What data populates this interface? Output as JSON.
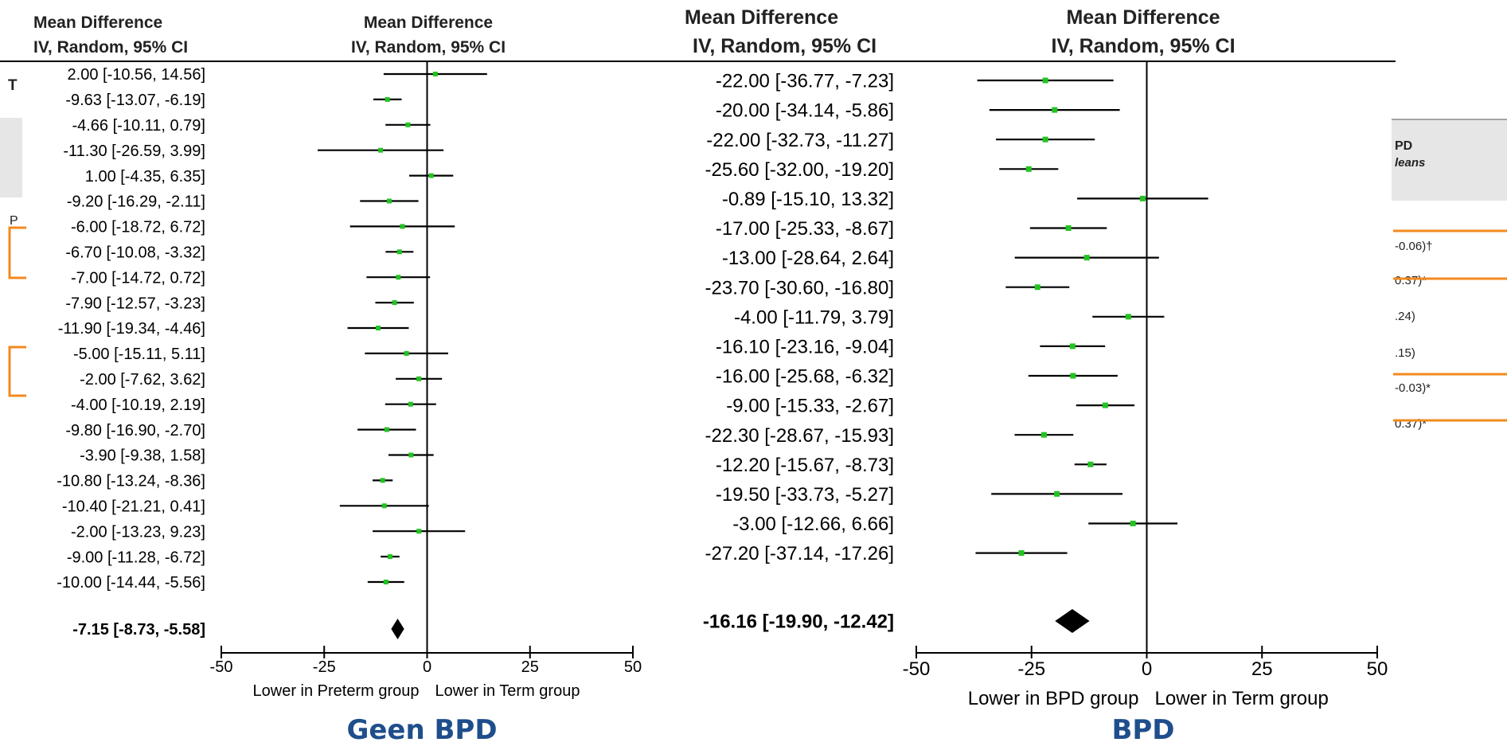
{
  "colors": {
    "estimate_marker": "#22c322",
    "panel_caption": "#1f4e8c",
    "highlight_bracket": "#f28a1f",
    "background_box": "#e6e6e6"
  },
  "background_fragments": {
    "left_letter_1": "T",
    "left_letter_2": "P",
    "right_header_1": "PD",
    "right_header_2": "leans",
    "right_rows": [
      "-0.06)†",
      "0.37)*",
      ".24)",
      ".15)",
      "-0.03)*",
      "0.37)*"
    ]
  },
  "chart_data": [
    {
      "type": "forest",
      "caption": "Geen BPD",
      "col_header_1": [
        "Mean Difference",
        "IV, Random, 95% CI"
      ],
      "col_header_2": [
        "Mean Difference",
        "IV, Random, 95% CI"
      ],
      "xlim": [
        -50,
        50
      ],
      "ticks": [
        -50,
        -25,
        0,
        25,
        50
      ],
      "tick_labels": [
        "-50",
        "-25",
        "0",
        "25",
        "50"
      ],
      "xlabel_left": "Lower in Preterm group",
      "xlabel_right": "Lower in Term group",
      "studies": [
        {
          "label": "2.00 [-10.56, 14.56]",
          "est": 2.0,
          "lo": -10.56,
          "hi": 14.56
        },
        {
          "label": "-9.63 [-13.07, -6.19]",
          "est": -9.63,
          "lo": -13.07,
          "hi": -6.19
        },
        {
          "label": "-4.66 [-10.11, 0.79]",
          "est": -4.66,
          "lo": -10.11,
          "hi": 0.79
        },
        {
          "label": "-11.30 [-26.59, 3.99]",
          "est": -11.3,
          "lo": -26.59,
          "hi": 3.99
        },
        {
          "label": "1.00 [-4.35, 6.35]",
          "est": 1.0,
          "lo": -4.35,
          "hi": 6.35
        },
        {
          "label": "-9.20 [-16.29, -2.11]",
          "est": -9.2,
          "lo": -16.29,
          "hi": -2.11
        },
        {
          "label": "-6.00 [-18.72, 6.72]",
          "est": -6.0,
          "lo": -18.72,
          "hi": 6.72
        },
        {
          "label": "-6.70 [-10.08, -3.32]",
          "est": -6.7,
          "lo": -10.08,
          "hi": -3.32
        },
        {
          "label": "-7.00 [-14.72, 0.72]",
          "est": -7.0,
          "lo": -14.72,
          "hi": 0.72
        },
        {
          "label": "-7.90 [-12.57, -3.23]",
          "est": -7.9,
          "lo": -12.57,
          "hi": -3.23
        },
        {
          "label": "-11.90 [-19.34, -4.46]",
          "est": -11.9,
          "lo": -19.34,
          "hi": -4.46
        },
        {
          "label": "-5.00 [-15.11, 5.11]",
          "est": -5.0,
          "lo": -15.11,
          "hi": 5.11
        },
        {
          "label": "-2.00 [-7.62, 3.62]",
          "est": -2.0,
          "lo": -7.62,
          "hi": 3.62
        },
        {
          "label": "-4.00 [-10.19, 2.19]",
          "est": -4.0,
          "lo": -10.19,
          "hi": 2.19
        },
        {
          "label": "-9.80 [-16.90, -2.70]",
          "est": -9.8,
          "lo": -16.9,
          "hi": -2.7
        },
        {
          "label": "-3.90 [-9.38, 1.58]",
          "est": -3.9,
          "lo": -9.38,
          "hi": 1.58
        },
        {
          "label": "-10.80 [-13.24, -8.36]",
          "est": -10.8,
          "lo": -13.24,
          "hi": -8.36
        },
        {
          "label": "-10.40 [-21.21, 0.41]",
          "est": -10.4,
          "lo": -21.21,
          "hi": 0.41
        },
        {
          "label": "-2.00 [-13.23, 9.23]",
          "est": -2.0,
          "lo": -13.23,
          "hi": 9.23
        },
        {
          "label": "-9.00 [-11.28, -6.72]",
          "est": -9.0,
          "lo": -11.28,
          "hi": -6.72
        },
        {
          "label": "-10.00 [-14.44, -5.56]",
          "est": -10.0,
          "lo": -14.44,
          "hi": -5.56
        }
      ],
      "pooled": {
        "label": "-7.15 [-8.73, -5.58]",
        "est": -7.15,
        "lo": -8.73,
        "hi": -5.58
      }
    },
    {
      "type": "forest",
      "caption": "BPD",
      "col_header_1": [
        "Mean Difference",
        "IV, Random, 95% CI"
      ],
      "col_header_2": [
        "Mean Difference",
        "IV, Random, 95% CI"
      ],
      "xlim": [
        -50,
        50
      ],
      "ticks": [
        -50,
        -25,
        0,
        25,
        50
      ],
      "tick_labels": [
        "-50",
        "-25",
        "0",
        "25",
        "50"
      ],
      "xlabel_left": "Lower in BPD group",
      "xlabel_right": "Lower in Term group",
      "studies": [
        {
          "label": "-22.00 [-36.77, -7.23]",
          "est": -22.0,
          "lo": -36.77,
          "hi": -7.23
        },
        {
          "label": "-20.00 [-34.14, -5.86]",
          "est": -20.0,
          "lo": -34.14,
          "hi": -5.86
        },
        {
          "label": "-22.00 [-32.73, -11.27]",
          "est": -22.0,
          "lo": -32.73,
          "hi": -11.27
        },
        {
          "label": "-25.60 [-32.00, -19.20]",
          "est": -25.6,
          "lo": -32.0,
          "hi": -19.2
        },
        {
          "label": "-0.89 [-15.10, 13.32]",
          "est": -0.89,
          "lo": -15.1,
          "hi": 13.32
        },
        {
          "label": "-17.00 [-25.33, -8.67]",
          "est": -17.0,
          "lo": -25.33,
          "hi": -8.67
        },
        {
          "label": "-13.00 [-28.64, 2.64]",
          "est": -13.0,
          "lo": -28.64,
          "hi": 2.64
        },
        {
          "label": "-23.70 [-30.60, -16.80]",
          "est": -23.7,
          "lo": -30.6,
          "hi": -16.8
        },
        {
          "label": "-4.00 [-11.79, 3.79]",
          "est": -4.0,
          "lo": -11.79,
          "hi": 3.79
        },
        {
          "label": "-16.10 [-23.16, -9.04]",
          "est": -16.1,
          "lo": -23.16,
          "hi": -9.04
        },
        {
          "label": "-16.00 [-25.68, -6.32]",
          "est": -16.0,
          "lo": -25.68,
          "hi": -6.32
        },
        {
          "label": "-9.00 [-15.33, -2.67]",
          "est": -9.0,
          "lo": -15.33,
          "hi": -2.67
        },
        {
          "label": "-22.30 [-28.67, -15.93]",
          "est": -22.3,
          "lo": -28.67,
          "hi": -15.93
        },
        {
          "label": "-12.20 [-15.67, -8.73]",
          "est": -12.2,
          "lo": -15.67,
          "hi": -8.73
        },
        {
          "label": "-19.50 [-33.73, -5.27]",
          "est": -19.5,
          "lo": -33.73,
          "hi": -5.27
        },
        {
          "label": "-3.00 [-12.66, 6.66]",
          "est": -3.0,
          "lo": -12.66,
          "hi": 6.66
        },
        {
          "label": "-27.20 [-37.14, -17.26]",
          "est": -27.2,
          "lo": -37.14,
          "hi": -17.26
        }
      ],
      "pooled": {
        "label": "-16.16 [-19.90, -12.42]",
        "est": -16.16,
        "lo": -19.9,
        "hi": -12.42
      }
    }
  ]
}
